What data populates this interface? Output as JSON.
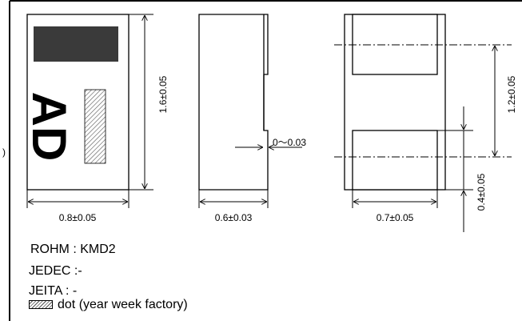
{
  "dimensions": {
    "width_front": "0.8±0.05",
    "height_front": "1.6±0.05",
    "width_side": "0.6±0.03",
    "step_side": "0〜0.03",
    "width_bottom": "0.7±0.05",
    "pad_spacing": "1.2±0.05",
    "pad_length": "0.4±0.05"
  },
  "marking": {
    "text": "AD"
  },
  "info": {
    "rohm": "ROHM : KMD2",
    "jedec": "JEDEC :-",
    "jeita": "JEITA : -",
    "legend": "dot (year week factory)"
  },
  "left_edge_fragment": ")",
  "colors": {
    "body_mark": "#3a3a3a",
    "line": "#000000"
  }
}
